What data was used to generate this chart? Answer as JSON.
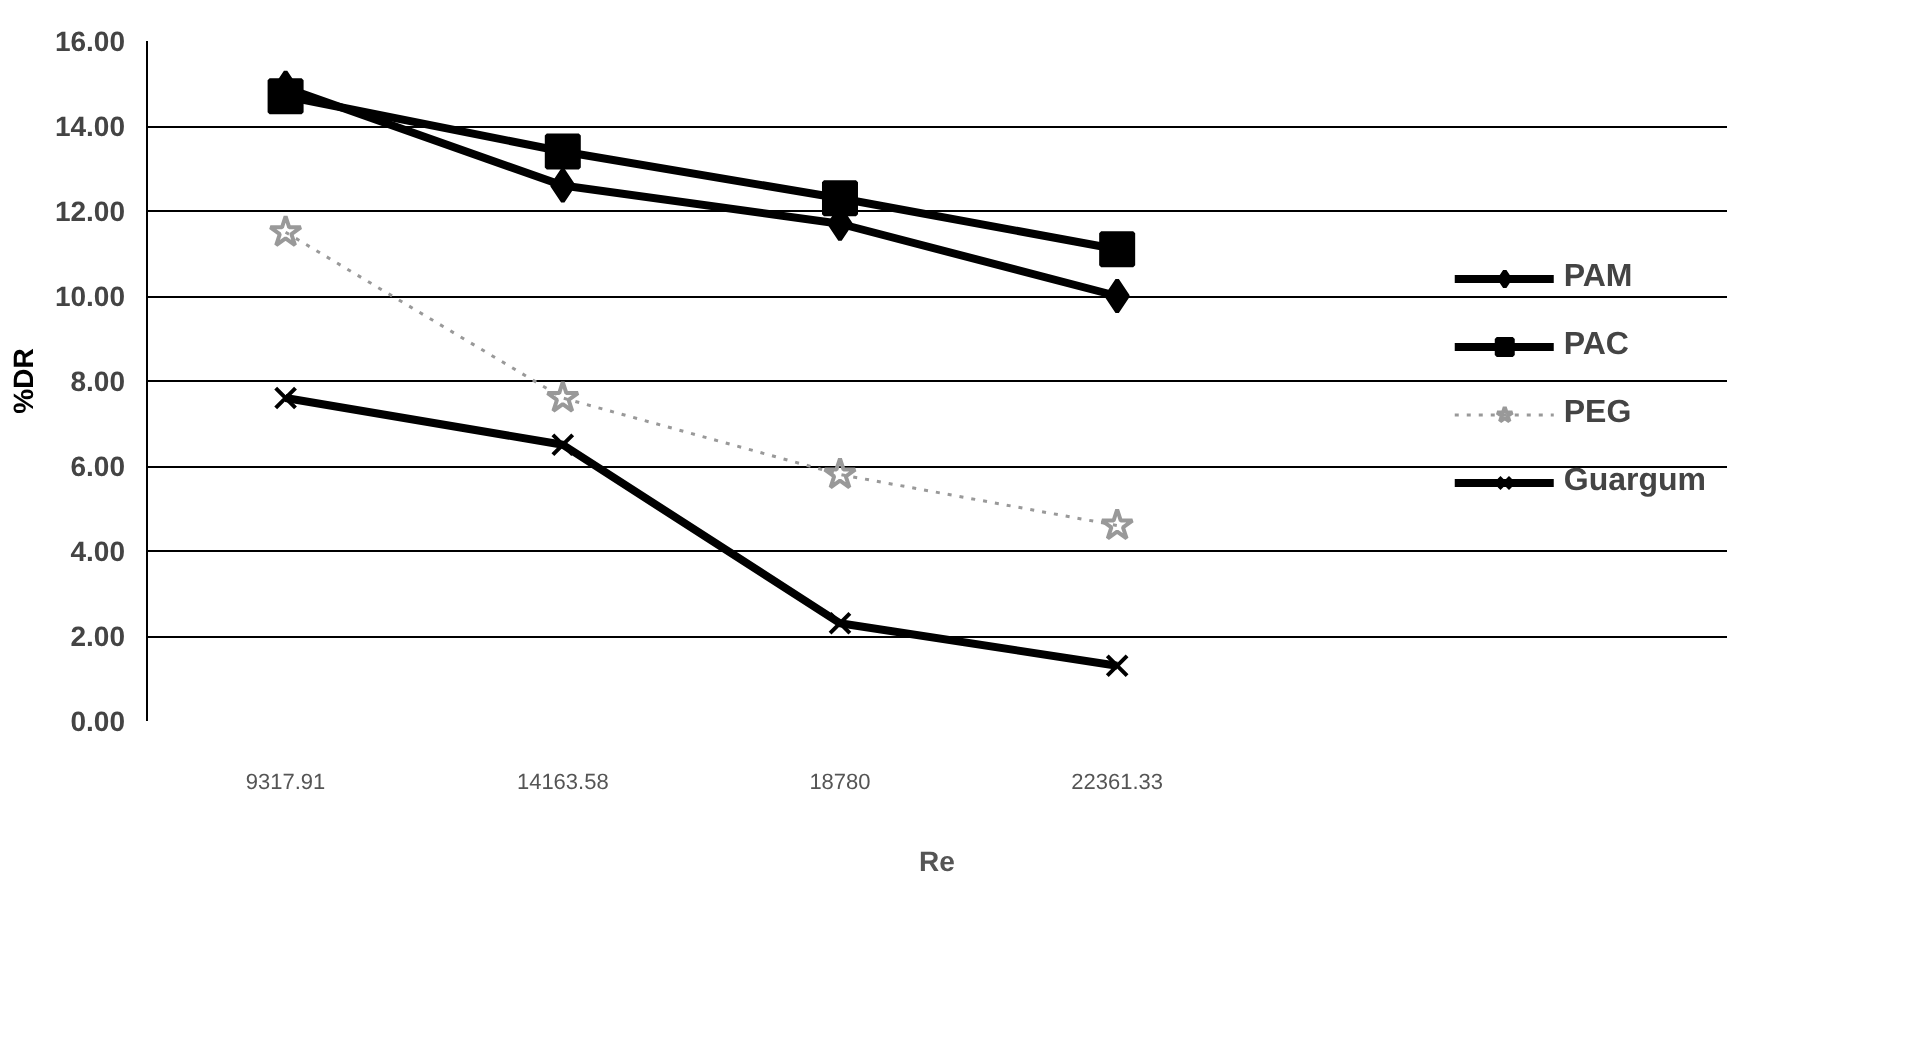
{
  "chart_data": {
    "type": "line",
    "xlabel": "Re",
    "ylabel": "%DR",
    "categories": [
      "9317.91",
      "14163.58",
      "18780",
      "22361.33"
    ],
    "ylim": [
      0,
      16
    ],
    "yticks": [
      {
        "value": 0,
        "label": "0.00"
      },
      {
        "value": 2,
        "label": "2.00"
      },
      {
        "value": 4,
        "label": "4.00"
      },
      {
        "value": 6,
        "label": "6.00"
      },
      {
        "value": 8,
        "label": "8.00"
      },
      {
        "value": 10,
        "label": "10.00"
      },
      {
        "value": 12,
        "label": "12.00"
      },
      {
        "value": 14,
        "label": "14.00"
      },
      {
        "value": 16,
        "label": "16.00"
      }
    ],
    "grid": "y",
    "legend": "right",
    "series": [
      {
        "name": "PAM",
        "color": "#000000",
        "marker": "diamond",
        "line_style": "solid",
        "values": [
          14.9,
          12.6,
          11.7,
          10.0
        ]
      },
      {
        "name": "PAC",
        "color": "#000000",
        "marker": "square",
        "line_style": "solid",
        "values": [
          14.7,
          13.4,
          12.3,
          11.1
        ]
      },
      {
        "name": "PEG",
        "color": "#999999",
        "marker": "star",
        "line_style": "dotted",
        "values": [
          11.5,
          7.6,
          5.8,
          4.6
        ]
      },
      {
        "name": "Guargum",
        "color": "#000000",
        "marker": "cross",
        "line_style": "solid",
        "values": [
          7.6,
          6.5,
          2.3,
          1.3
        ]
      }
    ]
  }
}
